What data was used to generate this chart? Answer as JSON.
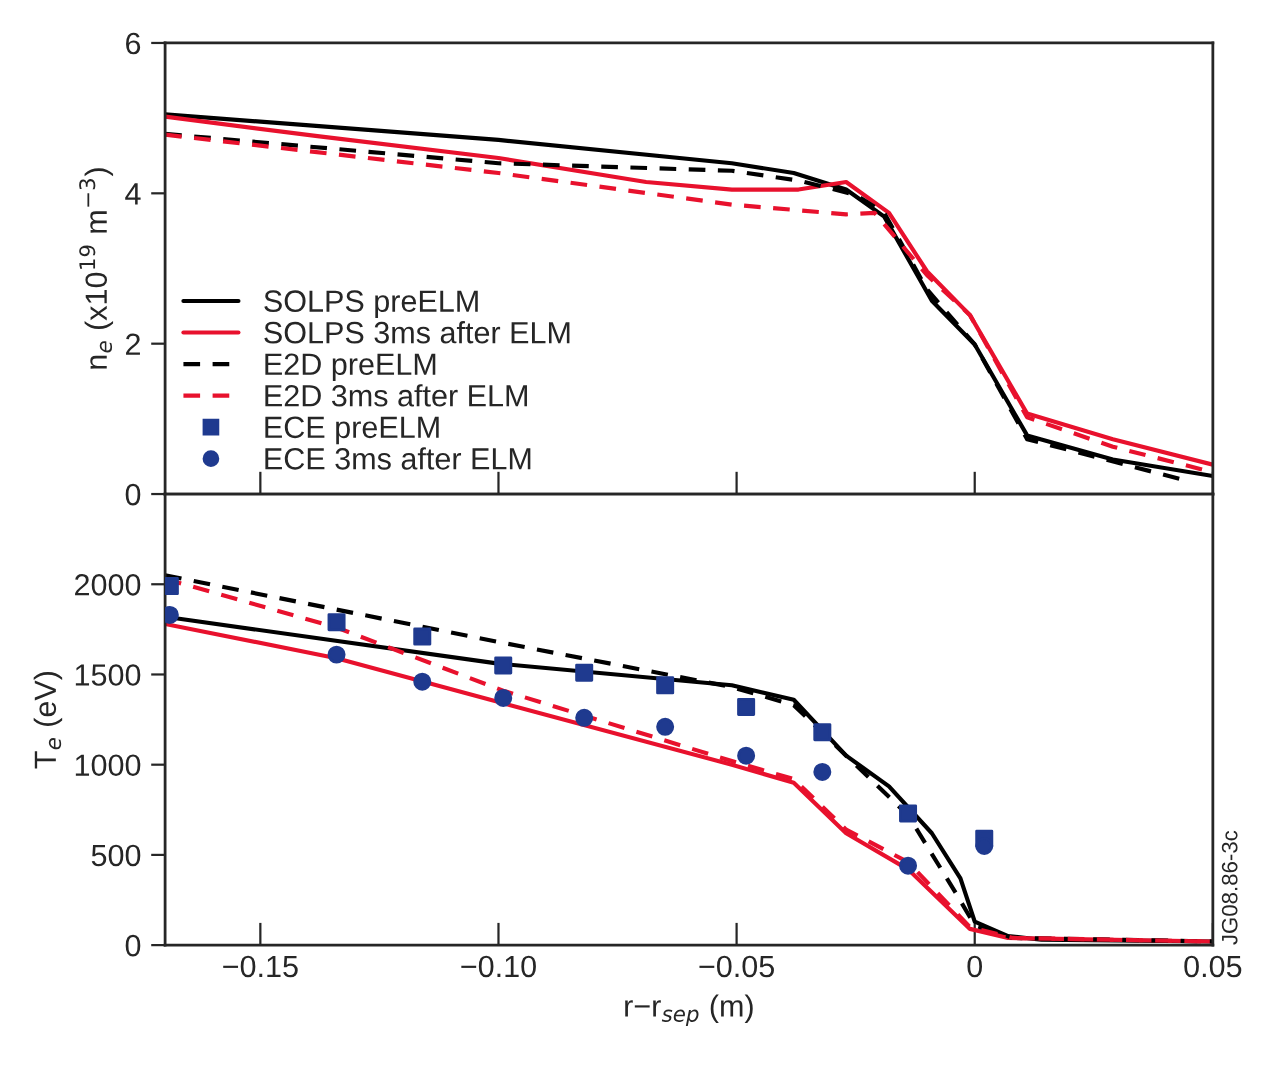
{
  "chart_data": [
    {
      "type": "line",
      "ylabel": "n$_{e}$ (x10$^{19}$ m$^{−3}$)",
      "xlim": [
        -0.17,
        0.05
      ],
      "xticks": [
        {
          "value": -0.15,
          "label": null
        },
        {
          "value": -0.1,
          "label": null
        },
        {
          "value": -0.05,
          "label": null
        },
        {
          "value": 0,
          "label": null
        },
        {
          "value": 0.05,
          "label": null
        }
      ],
      "ylim": [
        0,
        6
      ],
      "yticks": [
        0,
        2,
        4,
        6
      ],
      "tick_labels": "y",
      "grid": false,
      "legend": "bottom left",
      "marker": "none",
      "series": [
        {
          "name": "SOLPS preELM",
          "color": "#000000",
          "line_style": "solid",
          "x": [
            -0.17,
            -0.1,
            -0.051,
            -0.038,
            -0.027,
            -0.019,
            -0.009,
            0,
            0.011,
            0.029,
            0.05
          ],
          "values": [
            5.05,
            4.71,
            4.4,
            4.27,
            4.05,
            3.69,
            2.57,
            1.99,
            0.78,
            0.46,
            0.24
          ]
        },
        {
          "name": "SOLPS 3ms after ELM",
          "color": "#e8112d",
          "line_style": "solid",
          "x": [
            -0.17,
            -0.138,
            -0.1,
            -0.069,
            -0.051,
            -0.037,
            -0.027,
            -0.018,
            -0.01,
            -0.001,
            0.011,
            0.029,
            0.05
          ],
          "values": [
            5.02,
            4.76,
            4.47,
            4.15,
            4.05,
            4.05,
            4.15,
            3.74,
            2.96,
            2.38,
            1.07,
            0.73,
            0.39
          ]
        },
        {
          "name": "E2D preELM",
          "color": "#000000",
          "line_style": "dashed",
          "x": [
            -0.17,
            -0.1,
            -0.051,
            -0.037,
            -0.025,
            -0.019,
            -0.01,
            0,
            0.011,
            0.045
          ],
          "values": [
            4.79,
            4.4,
            4.3,
            4.17,
            3.98,
            3.74,
            2.72,
            1.99,
            0.73,
            0.17
          ]
        },
        {
          "name": "E2D 3ms after ELM",
          "color": "#e8112d",
          "line_style": "dashed",
          "x": [
            -0.17,
            -0.1,
            -0.051,
            -0.027,
            -0.021,
            -0.01,
            -0.001,
            0.011,
            0.029,
            0.05
          ],
          "values": [
            4.78,
            4.27,
            3.85,
            3.72,
            3.74,
            2.91,
            2.38,
            1.02,
            0.63,
            0.29
          ]
        }
      ]
    },
    {
      "type": "line",
      "ylabel": "T$_{e}$ (eV)",
      "xlabel": "r−r$_{sep}$ (m)",
      "xlim": [
        -0.17,
        0.05
      ],
      "xticks": [
        {
          "value": -0.15,
          "label": "−0.15"
        },
        {
          "value": -0.1,
          "label": "−0.10"
        },
        {
          "value": -0.05,
          "label": "−0.05"
        },
        0,
        0.05
      ],
      "ylim": [
        0,
        2500
      ],
      "yticks": [
        0,
        500,
        1000,
        1500,
        2000
      ],
      "grid": false,
      "legend": "top left",
      "marker": "none",
      "annotations": [
        "JG08.86-3c"
      ],
      "series": [
        {
          "color": "#000000",
          "line_style": "solid",
          "x": [
            -0.17,
            -0.1,
            -0.051,
            -0.038,
            -0.027,
            -0.018,
            -0.009,
            -0.003,
            0,
            0.007,
            0.014,
            0.05
          ],
          "values": [
            1820,
            1560,
            1440,
            1360,
            1050,
            880,
            620,
            370,
            130,
            50,
            30,
            20
          ]
        },
        {
          "color": "#e8112d",
          "line_style": "solid",
          "x": [
            -0.17,
            -0.134,
            -0.099,
            -0.051,
            -0.038,
            -0.027,
            -0.014,
            -0.001,
            0.007,
            0.05
          ],
          "values": [
            1780,
            1590,
            1340,
            1000,
            900,
            620,
            420,
            90,
            40,
            20
          ]
        },
        {
          "color": "#000000",
          "line_style": "dashed",
          "x": [
            -0.17,
            -0.1,
            -0.051,
            -0.038,
            -0.027,
            -0.014,
            -0.004,
            0,
            0.008,
            0.05
          ],
          "values": [
            2050,
            1680,
            1430,
            1330,
            1050,
            720,
            290,
            110,
            40,
            20
          ]
        },
        {
          "color": "#e8112d",
          "line_style": "dashed",
          "x": [
            -0.17,
            -0.134,
            -0.099,
            -0.051,
            -0.038,
            -0.027,
            -0.014,
            -0.001,
            0.008,
            0.05
          ],
          "values": [
            2030,
            1760,
            1410,
            1020,
            920,
            640,
            460,
            100,
            40,
            20
          ]
        },
        {
          "name": "ECE preELM",
          "type": "scatter",
          "marker": "square",
          "color": "#1f3a8f",
          "x": [
            -0.169,
            -0.134,
            -0.116,
            -0.099,
            -0.082,
            -0.065,
            -0.048,
            -0.032,
            -0.014,
            0.002
          ],
          "values": [
            1990,
            1790,
            1710,
            1550,
            1510,
            1440,
            1320,
            1180,
            730,
            590
          ]
        },
        {
          "name": "ECE 3ms after ELM",
          "type": "scatter",
          "marker": "circle",
          "color": "#1f3a8f",
          "x": [
            -0.169,
            -0.134,
            -0.116,
            -0.099,
            -0.082,
            -0.065,
            -0.048,
            -0.032,
            -0.014,
            0.002
          ],
          "values": [
            1830,
            1610,
            1460,
            1370,
            1260,
            1210,
            1050,
            960,
            440,
            550
          ]
        }
      ]
    }
  ]
}
